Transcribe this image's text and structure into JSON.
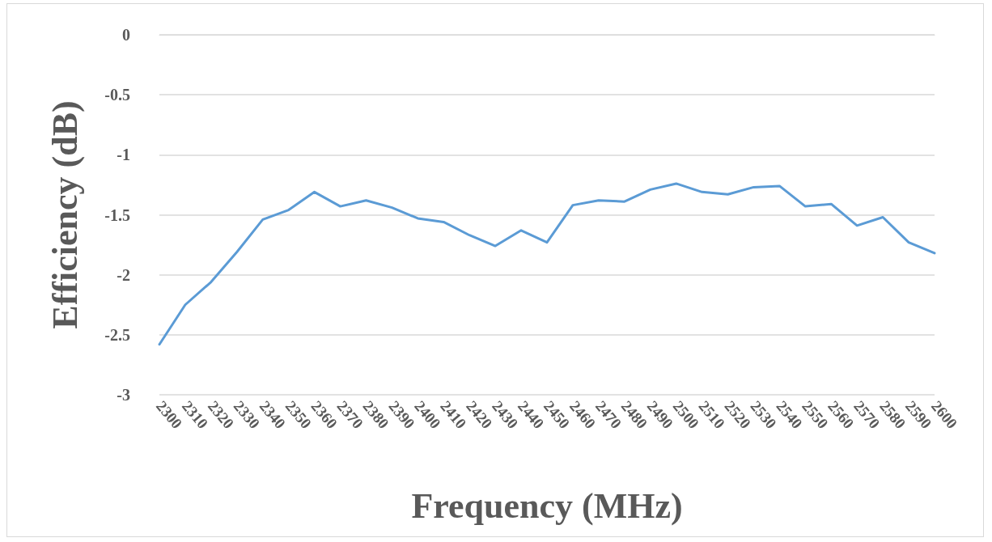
{
  "chart_data": {
    "type": "line",
    "xlabel": "Frequency (MHz)",
    "ylabel": "Efficiency (dB)",
    "categories": [
      "2300",
      "2310",
      "2320",
      "2330",
      "2340",
      "2350",
      "2360",
      "2370",
      "2380",
      "2390",
      "2400",
      "2410",
      "2420",
      "2430",
      "2440",
      "2450",
      "2460",
      "2470",
      "2480",
      "2490",
      "2500",
      "2510",
      "2520",
      "2530",
      "2540",
      "2550",
      "2560",
      "2570",
      "2580",
      "2590",
      "2600"
    ],
    "series": [
      {
        "color": "#5b9bd5",
        "values": [
          -2.58,
          -2.25,
          -2.06,
          -1.81,
          -1.54,
          -1.46,
          -1.31,
          -1.43,
          -1.38,
          -1.44,
          -1.53,
          -1.56,
          -1.67,
          -1.76,
          -1.63,
          -1.73,
          -1.42,
          -1.38,
          -1.39,
          -1.29,
          -1.24,
          -1.31,
          -1.33,
          -1.27,
          -1.26,
          -1.43,
          -1.41,
          -1.59,
          -1.52,
          -1.73,
          -1.82
        ]
      }
    ],
    "ylim": [
      -3,
      0
    ],
    "yticks": [
      -3,
      -2.5,
      -2,
      -1.5,
      -1,
      -0.5,
      0
    ],
    "grid": "y",
    "marker": "none",
    "line_style": "solid"
  }
}
